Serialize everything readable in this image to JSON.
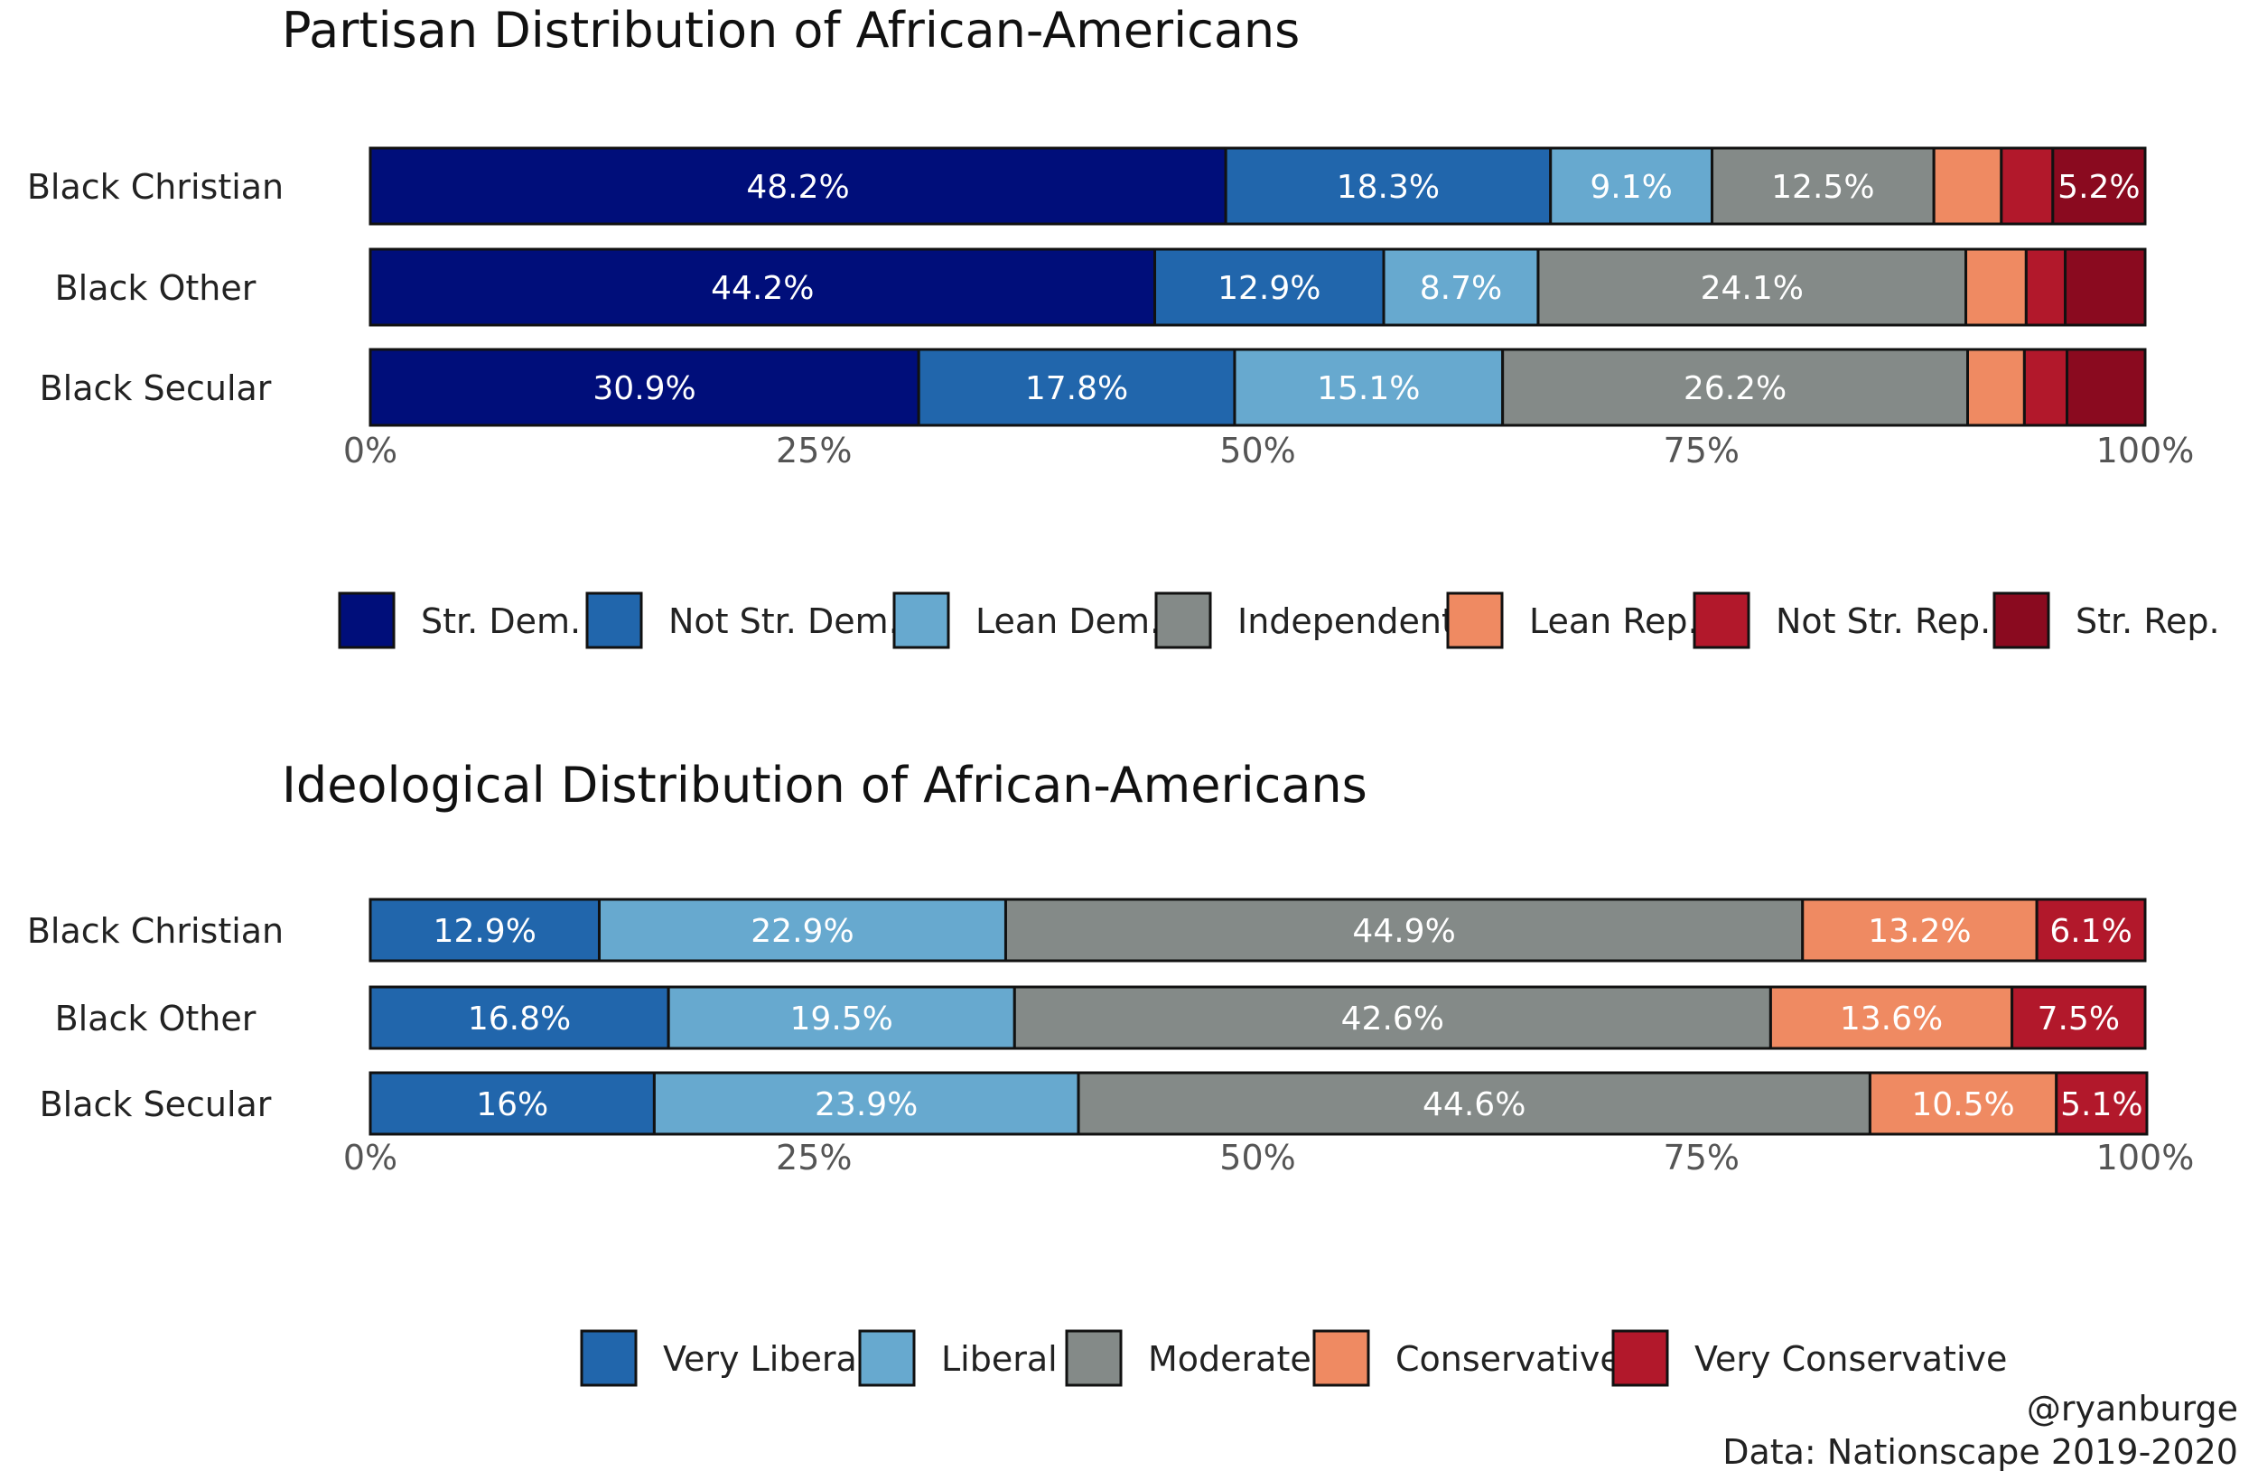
{
  "caption": {
    "handle": "@ryanburge",
    "source": "Data: Nationscape 2019-2020"
  },
  "chart_data": [
    {
      "type": "bar",
      "orientation": "horizontal-stacked-percent",
      "title": "Partisan Distribution of African-Americans",
      "categories": [
        "Black Christian",
        "Black Other",
        "Black Secular"
      ],
      "xlim": [
        0,
        100
      ],
      "xticks": [
        "0%",
        "25%",
        "50%",
        "75%",
        "100%"
      ],
      "legend": "bottom",
      "series": [
        {
          "name": "Str. Dem.",
          "color": "#000e7a",
          "values": [
            48.2,
            44.2,
            30.9
          ],
          "labels": [
            "48.2%",
            "44.2%",
            "30.9%"
          ]
        },
        {
          "name": "Not Str. Dem.",
          "color": "#2166ac",
          "values": [
            18.3,
            12.9,
            17.8
          ],
          "labels": [
            "18.3%",
            "12.9%",
            "17.8%"
          ]
        },
        {
          "name": "Lean Dem.",
          "color": "#67a9cf",
          "values": [
            9.1,
            8.7,
            15.1
          ],
          "labels": [
            "9.1%",
            "8.7%",
            "15.1%"
          ]
        },
        {
          "name": "Independent",
          "color": "#848a88",
          "values": [
            12.5,
            24.1,
            26.2
          ],
          "labels": [
            "12.5%",
            "24.1%",
            "26.2%"
          ]
        },
        {
          "name": "Lean Rep.",
          "color": "#ef8a62",
          "values": [
            3.8,
            3.4,
            3.2
          ],
          "labels": [
            "",
            "",
            ""
          ]
        },
        {
          "name": "Not Str. Rep.",
          "color": "#b2182b",
          "values": [
            2.9,
            2.2,
            2.4
          ],
          "labels": [
            "",
            "",
            ""
          ]
        },
        {
          "name": "Str. Rep.",
          "color": "#8a0a1f",
          "values": [
            5.2,
            4.5,
            4.4
          ],
          "labels": [
            "5.2%",
            "",
            ""
          ]
        }
      ]
    },
    {
      "type": "bar",
      "orientation": "horizontal-stacked-percent",
      "title": "Ideological Distribution of African-Americans",
      "categories": [
        "Black Christian",
        "Black Other",
        "Black Secular"
      ],
      "xlim": [
        0,
        100
      ],
      "xticks": [
        "0%",
        "25%",
        "50%",
        "75%",
        "100%"
      ],
      "legend": "bottom",
      "series": [
        {
          "name": "Very Liberal",
          "color": "#2166ac",
          "values": [
            12.9,
            16.8,
            16.0
          ],
          "labels": [
            "12.9%",
            "16.8%",
            "16%"
          ]
        },
        {
          "name": "Liberal",
          "color": "#67a9cf",
          "values": [
            22.9,
            19.5,
            23.9
          ],
          "labels": [
            "22.9%",
            "19.5%",
            "23.9%"
          ]
        },
        {
          "name": "Moderate",
          "color": "#848a88",
          "values": [
            44.9,
            42.6,
            44.6
          ],
          "labels": [
            "44.9%",
            "42.6%",
            "44.6%"
          ]
        },
        {
          "name": "Conservative",
          "color": "#ef8a62",
          "values": [
            13.2,
            13.6,
            10.5
          ],
          "labels": [
            "13.2%",
            "13.6%",
            "10.5%"
          ]
        },
        {
          "name": "Very Conservative",
          "color": "#b2182b",
          "values": [
            6.1,
            7.5,
            5.1
          ],
          "labels": [
            "6.1%",
            "7.5%",
            "5.1%"
          ]
        }
      ]
    }
  ]
}
